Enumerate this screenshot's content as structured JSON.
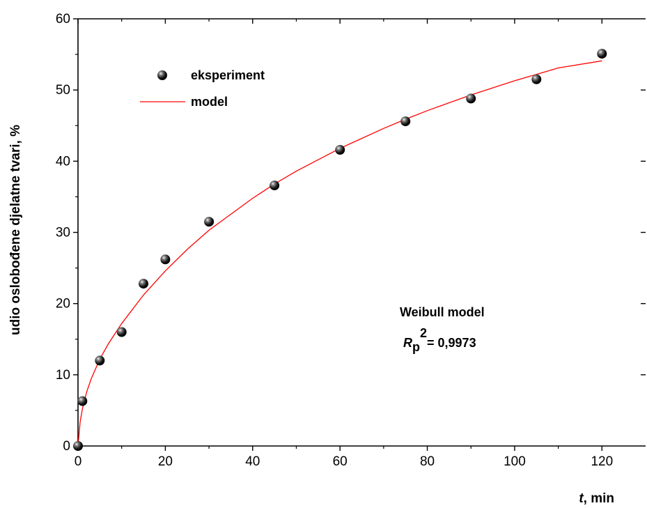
{
  "chart_data": {
    "type": "scatter",
    "xlabel": {
      "var": "t",
      "unit": ", min"
    },
    "ylabel": "udio oslobođene djelatne tvari, %",
    "xlim": [
      0,
      130
    ],
    "ylim": [
      0,
      60
    ],
    "x_ticks": [
      0,
      20,
      40,
      60,
      80,
      100,
      120
    ],
    "y_ticks": [
      0,
      10,
      20,
      30,
      40,
      50,
      60
    ],
    "legend": {
      "placement": "top-left"
    },
    "series": [
      {
        "name": "eksperiment",
        "kind": "scatter",
        "color": "#000000",
        "x": [
          0,
          1,
          5,
          10,
          15,
          20,
          30,
          45,
          60,
          75,
          90,
          105,
          120
        ],
        "y": [
          0,
          6.3,
          12.0,
          16.0,
          22.8,
          26.2,
          31.5,
          36.6,
          41.6,
          45.6,
          48.8,
          51.5,
          55.1
        ]
      },
      {
        "name": "model",
        "kind": "line",
        "color": "#ff0000",
        "x": [
          0,
          0.5,
          1,
          2,
          3,
          5,
          7,
          10,
          15,
          20,
          25,
          30,
          40,
          45,
          50,
          60,
          70,
          75,
          80,
          90,
          100,
          105,
          110,
          120
        ],
        "y": [
          0,
          3.4,
          5.2,
          7.6,
          9.4,
          12.2,
          14.4,
          17.2,
          21.2,
          24.6,
          27.6,
          30.3,
          34.8,
          36.8,
          38.6,
          41.8,
          44.6,
          45.9,
          47.1,
          49.3,
          51.3,
          52.2,
          53.1,
          54.1
        ]
      }
    ],
    "annotation": {
      "title": "Weibull model",
      "r_symbol": "R",
      "r_subscript": "p",
      "r_superscript": "2",
      "r_value": "= 0,9973"
    }
  }
}
